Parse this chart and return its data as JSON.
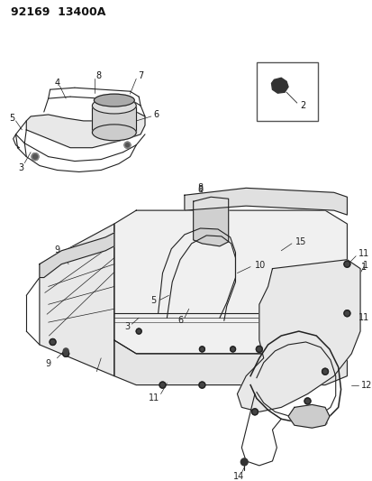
{
  "title_code": "92169  13400A",
  "bg_color": "#ffffff",
  "line_color": "#222222",
  "label_color": "#111111",
  "fig_width": 4.14,
  "fig_height": 5.33,
  "dpi": 100
}
